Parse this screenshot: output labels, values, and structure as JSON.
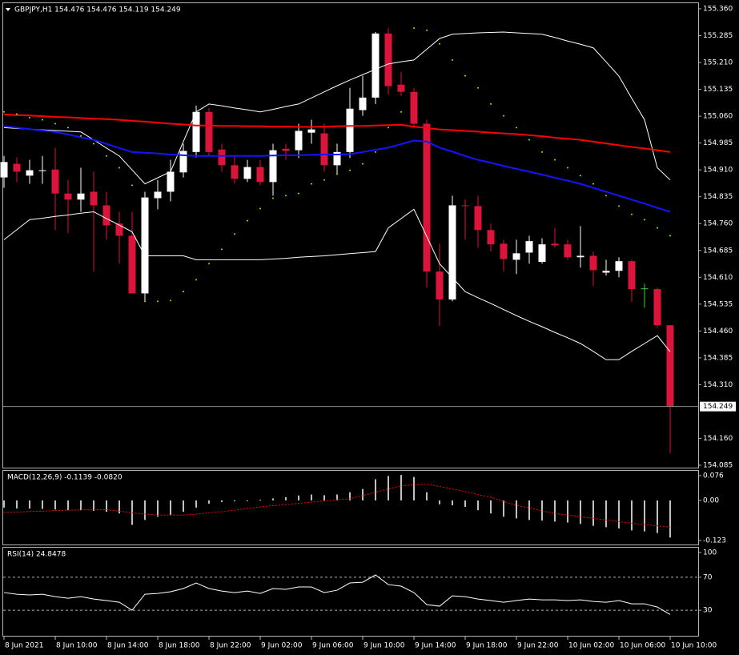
{
  "chart_data": [
    {
      "type": "candlestick",
      "header": "GBPJPY,H1  154.476 154.476 154.119 154.249",
      "categories": [
        "8 Jun 2021",
        null,
        null,
        null,
        "8 Jun 10:00",
        null,
        null,
        null,
        "8 Jun 14:00",
        null,
        null,
        null,
        "8 Jun 18:00",
        null,
        null,
        null,
        "8 Jun 22:00",
        null,
        null,
        null,
        "9 Jun 02:00",
        null,
        null,
        null,
        "9 Jun 06:00",
        null,
        null,
        null,
        "9 Jun 10:00",
        null,
        null,
        null,
        "9 Jun 14:00",
        null,
        null,
        null,
        "9 Jun 18:00",
        null,
        null,
        null,
        "9 Jun 22:00",
        null,
        null,
        null,
        "10 Jun 02:00",
        null,
        null,
        null,
        "10 Jun 06:00",
        null,
        null,
        null,
        "10 Jun 10:00"
      ],
      "open": [
        154.889,
        154.927,
        154.894,
        154.907,
        154.911,
        154.844,
        154.827,
        154.849,
        154.811,
        154.76,
        154.726,
        154.565,
        154.831,
        154.849,
        154.903,
        154.96,
        155.072,
        154.967,
        154.923,
        154.885,
        154.918,
        154.876,
        154.969,
        154.965,
        155.014,
        155.012,
        154.923,
        154.96,
        155.077,
        155.112,
        155.291,
        155.148,
        155.128,
        155.039,
        154.626,
        154.548,
        154.811,
        154.809,
        154.742,
        154.704,
        154.659,
        154.679,
        154.653,
        154.704,
        154.702,
        154.666,
        154.67,
        154.623,
        154.628,
        154.655,
        154.579,
        154.577,
        154.476
      ],
      "high": [
        154.949,
        154.945,
        154.938,
        154.949,
        154.972,
        154.882,
        154.916,
        154.905,
        154.849,
        154.793,
        154.793,
        154.849,
        154.882,
        154.938,
        154.983,
        155.09,
        155.083,
        154.983,
        154.949,
        154.938,
        154.938,
        154.983,
        154.983,
        155.039,
        155.05,
        155.039,
        154.983,
        155.139,
        155.173,
        155.295,
        155.306,
        155.184,
        155.139,
        155.05,
        154.704,
        154.838,
        154.827,
        154.838,
        154.76,
        154.715,
        154.715,
        154.726,
        154.719,
        154.748,
        154.715,
        154.753,
        154.682,
        154.659,
        154.666,
        154.659,
        154.592,
        154.581,
        154.476
      ],
      "low": [
        154.86,
        154.876,
        154.871,
        154.871,
        154.742,
        154.733,
        154.793,
        154.626,
        154.715,
        154.648,
        154.565,
        154.543,
        154.8,
        154.822,
        154.889,
        154.945,
        154.949,
        154.905,
        154.871,
        154.876,
        154.867,
        154.838,
        154.938,
        154.943,
        154.983,
        154.905,
        154.898,
        154.943,
        155.061,
        155.094,
        155.121,
        155.117,
        155.028,
        154.581,
        154.474,
        154.543,
        154.715,
        154.693,
        154.682,
        154.626,
        154.619,
        154.648,
        154.648,
        154.693,
        154.659,
        154.637,
        154.586,
        154.615,
        154.61,
        154.541,
        154.525,
        154.469,
        154.119
      ],
      "close": [
        154.932,
        154.905,
        154.909,
        154.909,
        154.844,
        154.827,
        154.844,
        154.811,
        154.755,
        154.726,
        154.565,
        154.833,
        154.849,
        154.905,
        154.963,
        155.072,
        154.96,
        154.923,
        154.885,
        154.918,
        154.876,
        154.965,
        154.963,
        155.019,
        155.023,
        154.923,
        154.96,
        155.081,
        155.112,
        155.291,
        155.144,
        155.128,
        155.039,
        154.626,
        154.548,
        154.811,
        154.809,
        154.742,
        154.702,
        154.661,
        154.677,
        154.711,
        154.702,
        154.699,
        154.666,
        154.67,
        154.63,
        154.628,
        154.655,
        154.577,
        154.579,
        154.476,
        154.249
      ],
      "up_color": "#ffffff",
      "down_color": "#dc143c",
      "doji_color": "#3cd23c",
      "overlays": [
        {
          "style": "line",
          "color": "#ffffff",
          "width": 1,
          "values": [
            155.028,
            155.026,
            155.024,
            155.022,
            155.02,
            155.018,
            155.016,
            154.994,
            154.971,
            154.949,
            154.91,
            154.871,
            154.888,
            154.905,
            154.989,
            155.072,
            155.094,
            155.089,
            155.083,
            155.078,
            155.072,
            155.079,
            155.087,
            155.094,
            155.111,
            155.128,
            155.145,
            155.161,
            155.176,
            155.191,
            155.206,
            155.212,
            155.217,
            155.247,
            155.277,
            155.289,
            155.291,
            155.293,
            155.294,
            155.295,
            155.293,
            155.291,
            155.289,
            155.28,
            155.27,
            155.261,
            155.251,
            155.212,
            155.172,
            155.11,
            155.05,
            154.916,
            154.882
          ]
        },
        {
          "style": "line",
          "color": "#ffffff",
          "width": 1,
          "values": [
            154.715,
            154.743,
            154.771,
            154.775,
            154.78,
            154.784,
            154.789,
            154.793,
            154.774,
            154.756,
            154.737,
            154.67,
            154.67,
            154.67,
            154.67,
            154.659,
            154.659,
            154.659,
            154.659,
            154.659,
            154.659,
            154.661,
            154.663,
            154.666,
            154.668,
            154.67,
            154.673,
            154.676,
            154.679,
            154.682,
            154.748,
            154.774,
            154.8,
            154.724,
            154.648,
            154.609,
            154.57,
            154.553,
            154.537,
            154.52,
            154.503,
            154.487,
            154.472,
            154.456,
            154.441,
            154.425,
            154.403,
            154.38,
            154.38,
            154.403,
            154.425,
            154.447,
            154.402
          ]
        },
        {
          "style": "line",
          "color": "#ff0000",
          "width": 2,
          "values": [
            155.065,
            155.063,
            155.062,
            155.06,
            155.058,
            155.057,
            155.055,
            155.053,
            155.052,
            155.05,
            155.047,
            155.045,
            155.042,
            155.039,
            155.037,
            155.034,
            155.034,
            155.033,
            155.033,
            155.032,
            155.032,
            155.031,
            155.031,
            155.03,
            155.03,
            155.031,
            155.032,
            155.033,
            155.033,
            155.034,
            155.035,
            155.036,
            155.031,
            155.027,
            155.023,
            155.021,
            155.019,
            155.017,
            155.014,
            155.012,
            155.01,
            155.007,
            155.004,
            155.0,
            154.997,
            154.994,
            154.989,
            154.984,
            154.979,
            154.974,
            154.97,
            154.965,
            154.96
          ]
        },
        {
          "style": "line",
          "color": "#1414ff",
          "width": 2,
          "values": [
            155.032,
            155.028,
            155.024,
            155.02,
            155.016,
            155.009,
            155.001,
            154.994,
            154.983,
            154.971,
            154.96,
            154.958,
            154.956,
            154.953,
            154.951,
            154.949,
            154.949,
            154.949,
            154.949,
            154.949,
            154.949,
            154.95,
            154.951,
            154.951,
            154.952,
            154.953,
            154.953,
            154.954,
            154.96,
            154.966,
            154.972,
            154.982,
            154.992,
            154.989,
            154.972,
            154.961,
            154.949,
            154.938,
            154.93,
            154.921,
            154.913,
            154.905,
            154.897,
            154.888,
            154.88,
            154.871,
            154.86,
            154.849,
            154.838,
            154.827,
            154.816,
            154.804,
            154.793
          ]
        },
        {
          "style": "dots",
          "color": "#7cfc00",
          "width": 1,
          "values": [
            155.072,
            155.066,
            155.056,
            155.05,
            155.039,
            155.028,
            155.005,
            154.983,
            154.949,
            154.916,
            154.867,
            154.543,
            154.543,
            154.545,
            154.57,
            154.603,
            154.648,
            154.688,
            154.731,
            154.768,
            154.802,
            154.831,
            154.838,
            154.844,
            154.871,
            154.882,
            154.898,
            154.909,
            154.927,
            154.96,
            155.028,
            155.072,
            155.306,
            155.3,
            155.262,
            155.217,
            155.173,
            155.139,
            155.094,
            155.061,
            155.028,
            154.994,
            154.96,
            154.938,
            154.916,
            154.894,
            154.871,
            154.838,
            154.809,
            154.786,
            154.771,
            154.748,
            154.726
          ]
        }
      ],
      "ylim": [
        154.085,
        155.36
      ],
      "yticks": [
        {
          "value": 155.36,
          "label": "155.360"
        },
        155.285,
        {
          "value": 155.21,
          "label": "155.210"
        },
        155.135,
        {
          "value": 155.06,
          "label": "155.060"
        },
        154.985,
        {
          "value": 154.91,
          "label": "154.910"
        },
        154.835,
        {
          "value": 154.76,
          "label": "154.760"
        },
        154.685,
        {
          "value": 154.61,
          "label": "154.610"
        },
        154.535,
        {
          "value": 154.46,
          "label": "154.460"
        },
        154.385,
        {
          "value": 154.31,
          "label": "154.310"
        },
        {
          "value": 154.16,
          "label": "154.160"
        },
        154.085
      ],
      "grid": false
    },
    {
      "type": "macd",
      "header": "MACD(12,26,9) -0.1139 -0.0820",
      "values": [
        -0.022,
        -0.025,
        -0.025,
        -0.026,
        -0.028,
        -0.03,
        -0.03,
        -0.032,
        -0.035,
        -0.04,
        -0.075,
        -0.06,
        -0.05,
        -0.045,
        -0.035,
        -0.022,
        -0.01,
        -0.005,
        -0.003,
        -0.002,
        0.002,
        0.006,
        0.01,
        0.015,
        0.018,
        0.016,
        0.018,
        0.025,
        0.035,
        0.065,
        0.075,
        0.078,
        0.072,
        0.025,
        -0.012,
        -0.015,
        -0.02,
        -0.03,
        -0.04,
        -0.05,
        -0.055,
        -0.06,
        -0.062,
        -0.065,
        -0.068,
        -0.072,
        -0.078,
        -0.082,
        -0.086,
        -0.092,
        -0.095,
        -0.1,
        -0.1139
      ],
      "color": "#c0c0c0",
      "signal": {
        "color": "#ff0000",
        "values": [
          -0.037,
          -0.036,
          -0.034,
          -0.033,
          -0.031,
          -0.03,
          -0.029,
          -0.029,
          -0.028,
          -0.033,
          -0.038,
          -0.042,
          -0.045,
          -0.045,
          -0.045,
          -0.042,
          -0.038,
          -0.035,
          -0.03,
          -0.025,
          -0.02,
          -0.016,
          -0.013,
          -0.009,
          -0.005,
          -0.002,
          0.002,
          0.005,
          0.015,
          0.025,
          0.035,
          0.045,
          0.048,
          0.05,
          0.043,
          0.035,
          0.027,
          0.018,
          0.01,
          -0.003,
          -0.015,
          -0.023,
          -0.032,
          -0.04,
          -0.045,
          -0.05,
          -0.055,
          -0.06,
          -0.065,
          -0.07,
          -0.074,
          -0.078,
          -0.082
        ]
      },
      "ylim": [
        -0.123,
        0.076
      ],
      "yticks": [
        0.076,
        {
          "value": 0,
          "label": "0.00"
        },
        -0.123
      ]
    },
    {
      "type": "line",
      "header": "RSI(14) 24.8478",
      "values": [
        51.4,
        49.4,
        48.5,
        49.4,
        46.5,
        44.6,
        46.5,
        43.6,
        41.7,
        39.7,
        30.0,
        49.4,
        50.4,
        52.4,
        56.3,
        63.1,
        56.3,
        53.3,
        51.4,
        53.3,
        50.4,
        56.3,
        55.3,
        58.2,
        58.2,
        51.4,
        54.3,
        63.1,
        64.0,
        72.8,
        61.1,
        59.2,
        51.4,
        36.8,
        34.9,
        47.5,
        46.5,
        43.6,
        41.7,
        39.7,
        41.7,
        43.6,
        42.6,
        42.6,
        41.7,
        42.6,
        40.7,
        39.7,
        41.7,
        37.8,
        37.8,
        33.9,
        24.8478
      ],
      "color": "#ffffff",
      "ylim": [
        0,
        100
      ],
      "yticks": [
        100,
        70,
        30
      ],
      "level_lines": true
    }
  ]
}
